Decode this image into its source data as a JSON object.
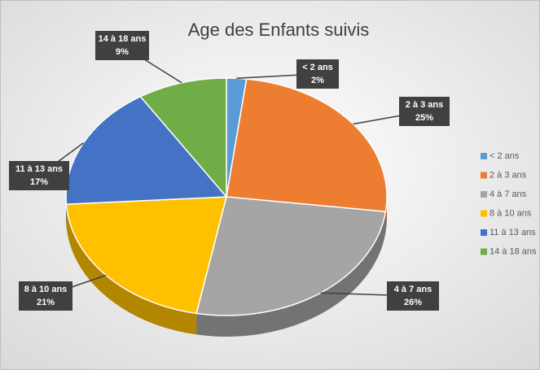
{
  "chart_data": {
    "type": "pie",
    "title": "Age des Enfants suivis",
    "categories": [
      "< 2 ans",
      "2 à 3 ans",
      "4 à 7 ans",
      "8 à 10 ans",
      "11 à 13 ans",
      "14 à 18 ans"
    ],
    "values": [
      2,
      25,
      26,
      21,
      17,
      9
    ],
    "value_labels": [
      "2%",
      "25%",
      "26%",
      "21%",
      "17%",
      "9%"
    ],
    "colors": [
      "#5b9bd5",
      "#ed7d31",
      "#a5a5a5",
      "#ffc000",
      "#4472c4",
      "#70ad47"
    ],
    "legend": "right"
  }
}
